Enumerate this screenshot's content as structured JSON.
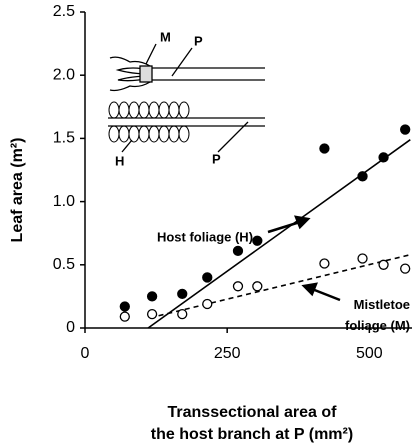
{
  "chart_data": {
    "type": "scatter",
    "x_label": [
      "Transsectional area of",
      "the host branch at P (mm²)"
    ],
    "y_label": "Leaf area (m²)",
    "xlim": [
      0,
      575
    ],
    "xticks": [
      0,
      250,
      500
    ],
    "ylim": [
      0,
      2.5
    ],
    "yticks": [
      0,
      0.5,
      {
        "value": 1,
        "label": "1.0"
      },
      {
        "value": 1.5,
        "label": "1.5"
      },
      {
        "value": 2,
        "label": "2.0"
      },
      {
        "value": 2.5,
        "label": "2.5"
      }
    ],
    "series": [
      {
        "name": "Host foliage (H)",
        "color": "#000000",
        "filled": true,
        "fit_style": "solid",
        "x": [
          70,
          118,
          171,
          215,
          269,
          303,
          421,
          488,
          525,
          563
        ],
        "values": [
          0.17,
          0.25,
          0.27,
          0.4,
          0.61,
          0.69,
          1.42,
          1.2,
          1.35,
          1.57
        ],
        "fit_x": [
          111,
          572
        ],
        "fit_y": [
          0,
          1.49
        ]
      },
      {
        "name": "Mistletoe foliage (M)",
        "color": "#000000",
        "filled": false,
        "fit_style": "dashed",
        "x": [
          70,
          118,
          171,
          215,
          269,
          303,
          421,
          488,
          525,
          563
        ],
        "values": [
          0.09,
          0.11,
          0.11,
          0.19,
          0.33,
          0.33,
          0.51,
          0.55,
          0.5,
          0.47
        ],
        "fit_x": [
          114,
          572
        ],
        "fit_y": [
          0.08,
          0.58
        ]
      }
    ],
    "diagram_labels": [
      "M",
      "P",
      "H",
      "P"
    ]
  }
}
